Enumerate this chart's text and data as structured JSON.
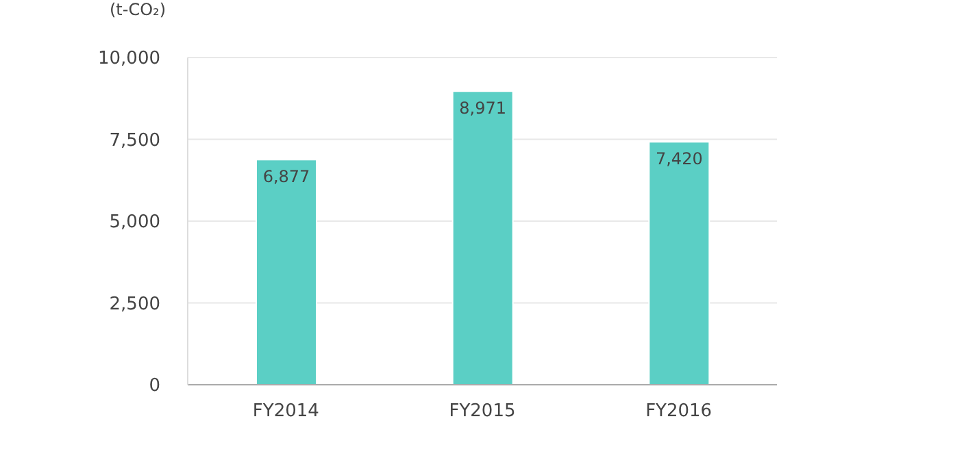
{
  "chart_data": {
    "type": "bar",
    "ylabel": "(t-CO₂)",
    "categories": [
      "FY2014",
      "FY2015",
      "FY2016"
    ],
    "values": [
      6877,
      8971,
      7420
    ],
    "value_labels": [
      "6,877",
      "8,971",
      "7,420"
    ],
    "color": "#5bcfc5",
    "ylim": [
      0,
      10000
    ],
    "yticks": [
      0,
      {
        "value": 2500,
        "label": "2,500"
      },
      {
        "value": 5000,
        "label": "5,000"
      },
      {
        "value": 7500,
        "label": "7,500"
      },
      {
        "value": 10000,
        "label": "10,000"
      }
    ],
    "grid": "y"
  }
}
